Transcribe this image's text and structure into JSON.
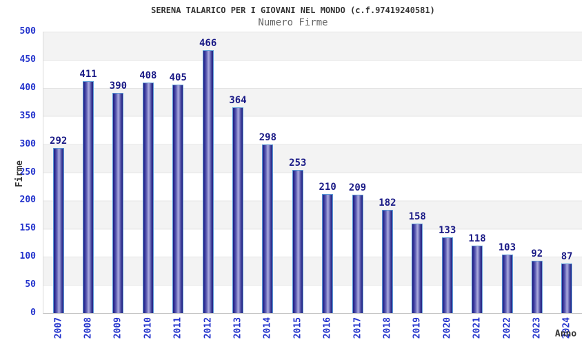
{
  "header": {
    "title": "SERENA TALARICO PER I GIOVANI NEL MONDO (c.f.97419240581)",
    "subtitle": "Numero Firme"
  },
  "chart_data": {
    "type": "bar",
    "title": "SERENA TALARICO PER I GIOVANI NEL MONDO (c.f.97419240581)",
    "subtitle": "Numero Firme",
    "xlabel": "Anno",
    "ylabel": "Firme",
    "categories": [
      "2007",
      "2008",
      "2009",
      "2010",
      "2011",
      "2012",
      "2013",
      "2014",
      "2015",
      "2016",
      "2017",
      "2018",
      "2019",
      "2020",
      "2021",
      "2022",
      "2023",
      "2024"
    ],
    "values": [
      292,
      411,
      390,
      408,
      405,
      466,
      364,
      298,
      253,
      210,
      209,
      182,
      158,
      133,
      118,
      103,
      92,
      87
    ],
    "ylim": [
      0,
      500
    ],
    "ytick_step": 50,
    "grid": true,
    "legend_position": "none",
    "band_colors": [
      "#f3f3f3",
      "#ffffff"
    ],
    "colors": {
      "bar_edge_dark": "#20207f",
      "bar_mid": "#6a6aba",
      "bar_light": "#a8a8dd",
      "bar_outline": "#5c9cd8",
      "axis_tick_label": "#2333cc",
      "value_label": "#1a1a86",
      "gridline": "#e4e4e4",
      "band_gray": "#f3f3f3",
      "title_color": "#333333",
      "subtitle_color": "#666666"
    }
  }
}
